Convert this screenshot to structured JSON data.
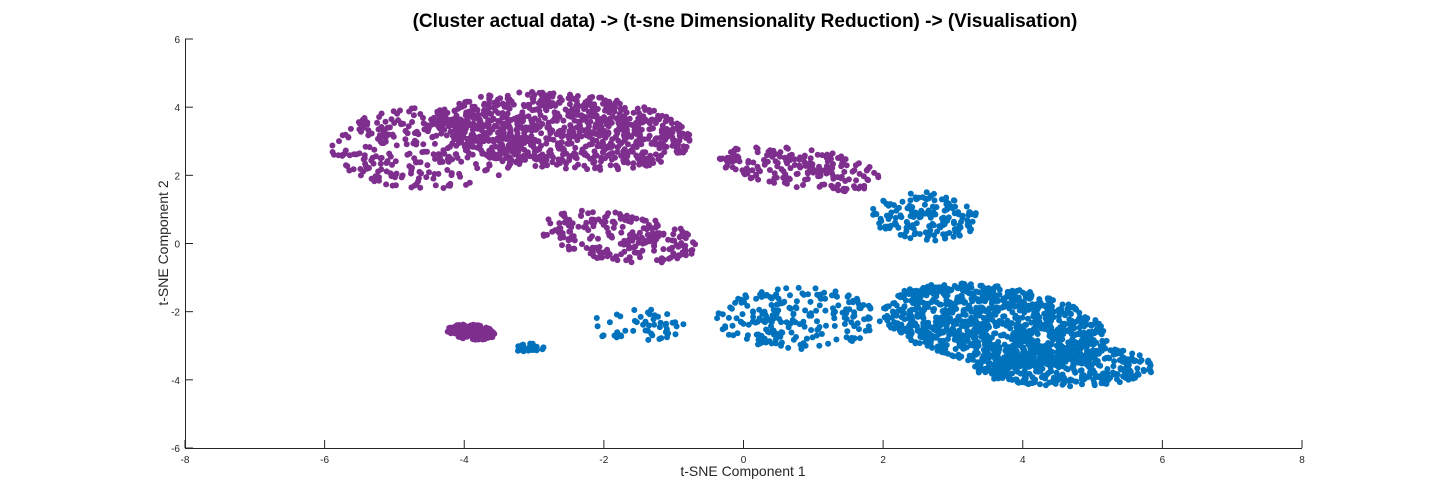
{
  "chart_data": {
    "type": "scatter",
    "title": "(Cluster actual data) -> (t-sne Dimensionality Reduction) -> (Visualisation)",
    "xlabel": "t-SNE Component 1",
    "ylabel": "t-SNE Component 2",
    "xlim": [
      -8,
      8
    ],
    "ylim": [
      -6,
      6
    ],
    "xticks": [
      -8,
      -6,
      -4,
      -2,
      0,
      2,
      4,
      6,
      8
    ],
    "yticks": [
      -6,
      -4,
      -2,
      0,
      2,
      4,
      6
    ],
    "grid": false,
    "legend": "none",
    "series": [
      {
        "color": "#7E2F8E",
        "regions": [
          {
            "center": [
              -2.6,
              3.3
            ],
            "spread": [
              1.9,
              1.1
            ],
            "angle_deg": -12,
            "n": 900,
            "shape": "ellipse"
          },
          {
            "center": [
              -4.5,
              2.8
            ],
            "spread": [
              1.4,
              1.2
            ],
            "angle_deg": 0,
            "n": 300,
            "shape": "ellipse"
          },
          {
            "center": [
              0.8,
              2.2
            ],
            "spread": [
              1.2,
              0.6
            ],
            "angle_deg": -18,
            "n": 200,
            "shape": "ellipse"
          },
          {
            "center": [
              -1.8,
              0.2
            ],
            "spread": [
              1.2,
              0.7
            ],
            "angle_deg": -20,
            "n": 220,
            "shape": "ellipse"
          },
          {
            "center": [
              -3.9,
              -2.6
            ],
            "spread": [
              0.35,
              0.22
            ],
            "angle_deg": -15,
            "n": 160,
            "shape": "ellipse"
          }
        ]
      },
      {
        "color": "#0072BD",
        "regions": [
          {
            "center": [
              3.6,
              -2.4
            ],
            "spread": [
              1.7,
              1.1
            ],
            "angle_deg": -25,
            "n": 1000,
            "shape": "ellipse"
          },
          {
            "center": [
              4.6,
              -3.6
            ],
            "spread": [
              1.3,
              0.6
            ],
            "angle_deg": 0,
            "n": 400,
            "shape": "ellipse"
          },
          {
            "center": [
              2.6,
              0.8
            ],
            "spread": [
              0.8,
              0.7
            ],
            "angle_deg": -25,
            "n": 160,
            "shape": "ellipse"
          },
          {
            "center": [
              0.8,
              -2.2
            ],
            "spread": [
              1.2,
              0.9
            ],
            "angle_deg": 0,
            "n": 220,
            "shape": "ellipse"
          },
          {
            "center": [
              -1.5,
              -2.4
            ],
            "spread": [
              0.7,
              0.5
            ],
            "angle_deg": 0,
            "n": 50,
            "shape": "ellipse"
          },
          {
            "center": [
              -3.1,
              -3.05
            ],
            "spread": [
              0.25,
              0.12
            ],
            "angle_deg": 0,
            "n": 25,
            "shape": "ellipse"
          }
        ]
      }
    ]
  }
}
